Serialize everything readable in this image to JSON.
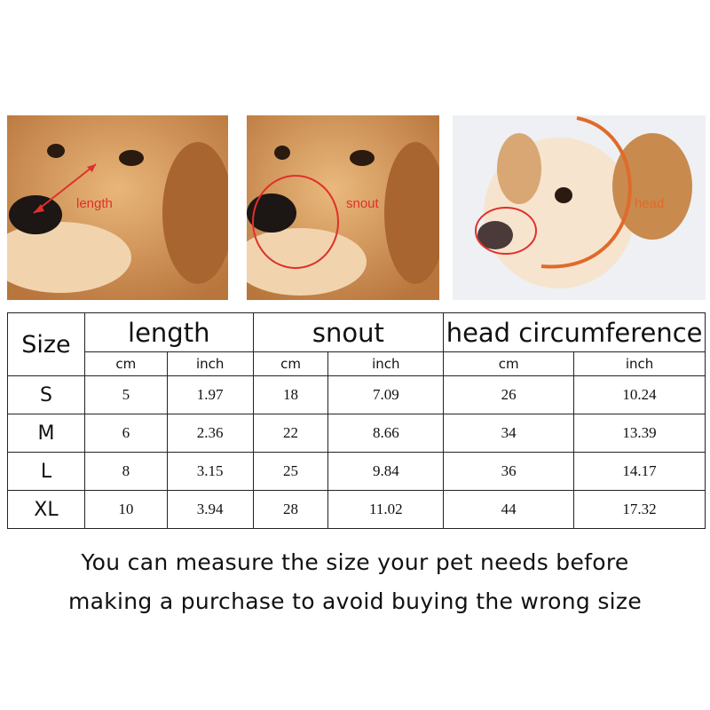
{
  "photos": [
    {
      "label": "length",
      "annotation_color": "#e0302a"
    },
    {
      "label": "snout",
      "annotation_color": "#e0302a"
    },
    {
      "label": "head",
      "annotation_color": "#e06a2a"
    }
  ],
  "table": {
    "size_header": "Size",
    "groups": [
      "length",
      "snout",
      "head circumference"
    ],
    "units": [
      "cm",
      "inch",
      "cm",
      "inch",
      "cm",
      "inch"
    ],
    "rows": [
      {
        "size": "S",
        "values": [
          "5",
          "1.97",
          "18",
          "7.09",
          "26",
          "10.24"
        ]
      },
      {
        "size": "M",
        "values": [
          "6",
          "2.36",
          "22",
          "8.66",
          "34",
          "13.39"
        ]
      },
      {
        "size": "L",
        "values": [
          "8",
          "3.15",
          "25",
          "9.84",
          "36",
          "14.17"
        ]
      },
      {
        "size": "XL",
        "values": [
          "10",
          "3.94",
          "28",
          "11.02",
          "44",
          "17.32"
        ]
      }
    ]
  },
  "note": {
    "line1": "You can measure the size your pet needs before",
    "line2": "making a purchase to avoid buying the wrong size"
  }
}
